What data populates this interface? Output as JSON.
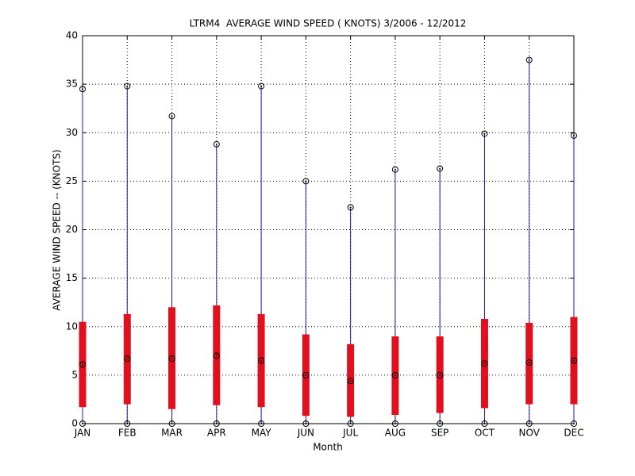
{
  "chart_data": {
    "type": "range-box",
    "title": "LTRM4  AVERAGE WIND SPEED ( KNOTS) 3/2006 - 12/2012",
    "x_label": "Month",
    "y_label": "AVERAGE WIND SPEED -- (KNOTS)",
    "categories": [
      "JAN",
      "FEB",
      "MAR",
      "APR",
      "MAY",
      "JUN",
      "JUL",
      "AUG",
      "SEP",
      "OCT",
      "NOV",
      "DEC"
    ],
    "min": [
      0,
      0,
      0,
      0,
      0,
      0,
      0,
      0,
      0,
      0,
      0,
      0
    ],
    "lower": [
      1.7,
      2.0,
      1.5,
      1.9,
      1.7,
      0.8,
      0.7,
      0.9,
      1.1,
      1.6,
      2.0,
      2.0
    ],
    "center": [
      6.1,
      6.7,
      6.7,
      7.0,
      6.5,
      5.0,
      4.4,
      5.0,
      5.0,
      6.2,
      6.3,
      6.5
    ],
    "upper": [
      10.5,
      11.3,
      12.0,
      12.2,
      11.3,
      9.2,
      8.2,
      9.0,
      9.0,
      10.8,
      10.4,
      11.0
    ],
    "max": [
      34.5,
      34.8,
      31.7,
      28.8,
      34.8,
      25.0,
      22.3,
      26.2,
      26.3,
      29.9,
      37.5,
      29.7
    ],
    "line_color": "#1a1a9c",
    "box_color": "#e0101e",
    "ylim": [
      0,
      40
    ],
    "yticks": [
      0,
      5,
      10,
      15,
      20,
      25,
      30,
      35,
      40
    ],
    "grid": true
  }
}
